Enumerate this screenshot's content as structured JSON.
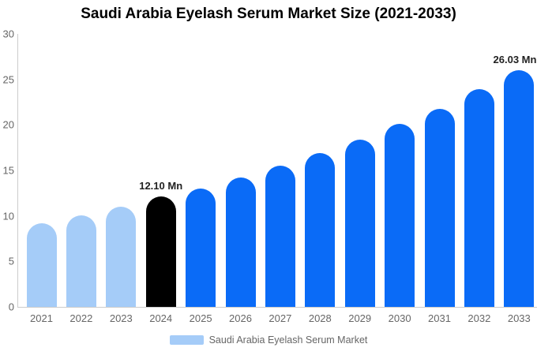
{
  "page": {
    "background": "#ffffff"
  },
  "chart_data": {
    "type": "bar",
    "title": "Saudi Arabia Eyelash Serum Market Size (2021-2033)",
    "unit": "Mn",
    "categories": [
      "2021",
      "2022",
      "2023",
      "2024",
      "2025",
      "2026",
      "2027",
      "2028",
      "2029",
      "2030",
      "2031",
      "2032",
      "2033"
    ],
    "values": [
      9.2,
      10.1,
      11.0,
      12.1,
      13.0,
      14.2,
      15.5,
      16.9,
      18.4,
      20.1,
      21.8,
      23.9,
      26.03
    ],
    "xlabel": "",
    "ylabel": "",
    "ylim": [
      0,
      30
    ],
    "yticks": [
      0,
      5,
      10,
      15,
      20,
      25,
      30
    ],
    "grid": false,
    "legend_position": "bottom",
    "legend": {
      "label": "Saudi Arabia Eyelash Serum Market",
      "swatch_color": "#A5CCF8"
    },
    "annotations": [
      {
        "category": "2024",
        "text": "12.10 Mn"
      },
      {
        "category": "2033",
        "text": "26.03 Mn"
      }
    ],
    "bar_colors": {
      "historical": "#A5CCF8",
      "base_year": "#000000",
      "forecast": "#0A6BF7"
    },
    "bar_color_groups": [
      "historical",
      "historical",
      "historical",
      "base_year",
      "forecast",
      "forecast",
      "forecast",
      "forecast",
      "forecast",
      "forecast",
      "forecast",
      "forecast",
      "forecast"
    ],
    "axis_color": "#cccccc",
    "tick_label_color": "#666666",
    "value_label_color": "#222222"
  }
}
